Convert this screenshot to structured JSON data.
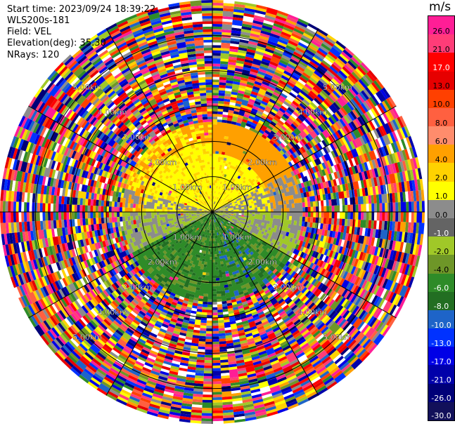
{
  "header": {
    "start_time": "Start time: 2023/09/24 18:39:22",
    "instrument": "WLS200s-181",
    "field": "Field: VEL",
    "elevation": "Elevation(deg): 35.30",
    "nrays": "NRays: 120"
  },
  "chart_data": {
    "type": "heatmap",
    "projection": "polar-ppi",
    "field": "VEL",
    "units": "m/s",
    "start_time": "2023/09/24 18:39:22",
    "instrument": "WLS200s-181",
    "elevation_deg": 35.3,
    "n_rays": 120,
    "range_rings_km": [
      1.0,
      2.0,
      3.0,
      4.0,
      5.0
    ],
    "range_ring_labels": [
      "1.00km",
      "2.00km",
      "3.00km",
      "4.00km",
      "5.00km"
    ],
    "max_range_km": 6.0,
    "valid_signal_range_km": 2.55,
    "azimuth_spokes_deg": [
      0,
      30,
      60,
      90,
      120,
      150,
      180,
      210,
      240,
      270,
      300,
      330
    ],
    "colorbar": {
      "label": "m/s",
      "ticks": [
        "26.0",
        "21.0",
        "17.0",
        "13.0",
        "10.0",
        "8.0",
        "6.0",
        "4.0",
        "2.0",
        "1.0",
        "0.0",
        "-1.0",
        "-2.0",
        "-4.0",
        "-6.0",
        "-8.0",
        "-10.0",
        "-13.0",
        "-17.0",
        "-21.0",
        "-26.0",
        "-30.0"
      ],
      "colors": [
        "#ff1e96",
        "#ff3c78",
        "#ff0000",
        "#e60000",
        "#ff4000",
        "#ff6040",
        "#ff8c6c",
        "#ffa000",
        "#ffd200",
        "#ffff00",
        "#8c8c8c",
        "#646464",
        "#a0c828",
        "#6e9628",
        "#2e8b28",
        "#226e22",
        "#1e64c8",
        "#0032ff",
        "#0000e6",
        "#0000aa",
        "#000078",
        "#12105a"
      ]
    }
  }
}
